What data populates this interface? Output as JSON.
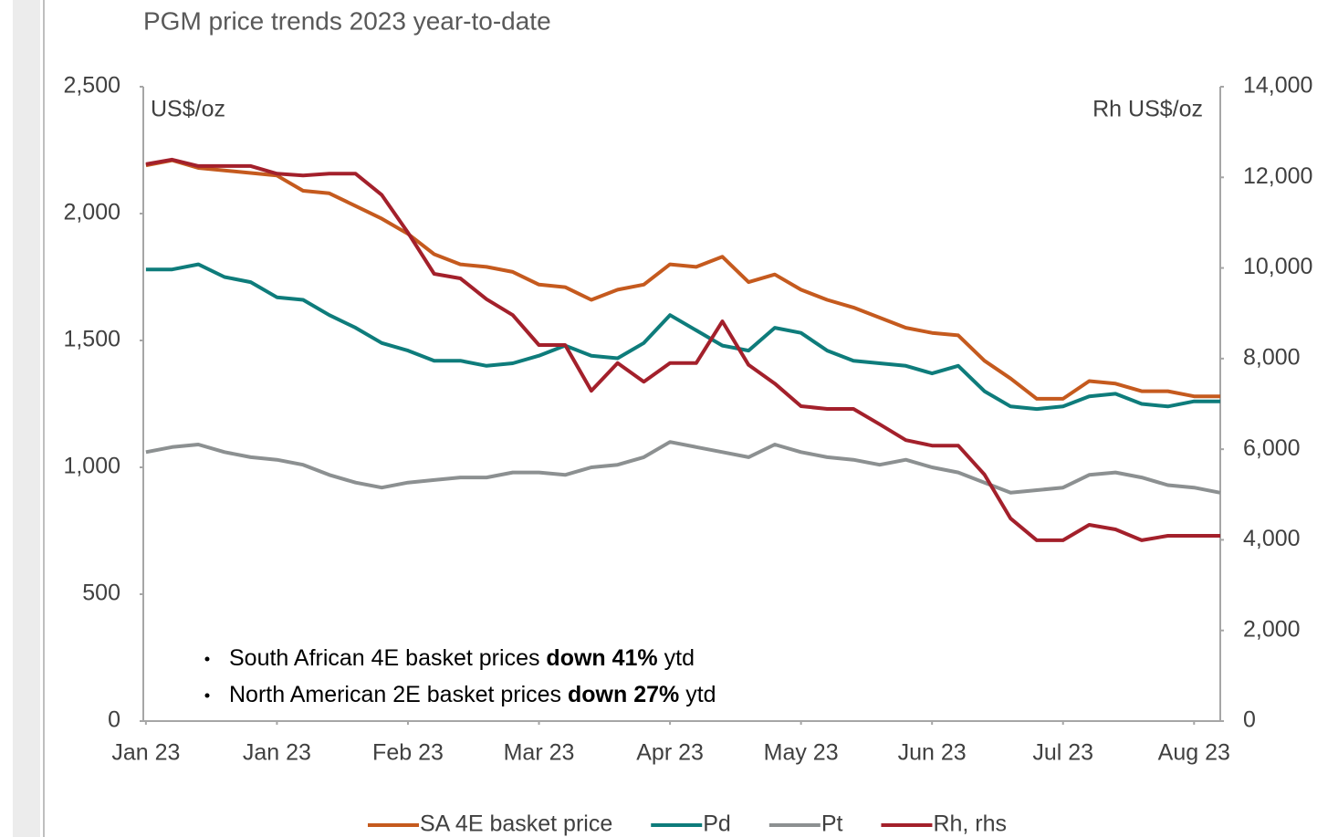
{
  "chart_data": {
    "type": "line",
    "title": "PGM price trends 2023 year-to-date",
    "y_label": "US$/oz",
    "y2_label": "Rh US$/oz",
    "x": [
      0,
      0.2,
      0.4,
      0.6,
      0.8,
      1.0,
      1.2,
      1.4,
      1.6,
      1.8,
      2.0,
      2.2,
      2.4,
      2.6,
      2.8,
      3.0,
      3.2,
      3.4,
      3.6,
      3.8,
      4.0,
      4.2,
      4.4,
      4.6,
      4.8,
      5.0,
      5.2,
      5.4,
      5.6,
      5.8,
      6.0,
      6.2,
      6.4,
      6.6,
      6.8,
      7.0,
      7.2,
      7.4,
      7.6,
      7.8,
      8.0,
      8.2
    ],
    "xlim": [
      -0.02,
      8.2
    ],
    "xticks": [
      {
        "value": 0,
        "label": "Jan 23"
      },
      {
        "value": 1,
        "label": "Jan 23"
      },
      {
        "value": 2,
        "label": "Feb 23"
      },
      {
        "value": 3,
        "label": "Mar 23"
      },
      {
        "value": 4,
        "label": "Apr 23"
      },
      {
        "value": 5,
        "label": "May 23"
      },
      {
        "value": 6,
        "label": "Jun 23"
      },
      {
        "value": 7,
        "label": "Jul 23"
      },
      {
        "value": 8,
        "label": "Aug 23"
      }
    ],
    "ylim": [
      0,
      2500
    ],
    "yticks": [
      0,
      500,
      {
        "value": 1000,
        "label": "1,000"
      },
      {
        "value": 1500,
        "label": "1,500"
      },
      {
        "value": 2000,
        "label": "2,000"
      },
      {
        "value": 2500,
        "label": "2,500"
      }
    ],
    "y2lim": [
      0,
      14000
    ],
    "y2ticks": [
      0,
      {
        "value": 2000,
        "label": "2,000"
      },
      {
        "value": 4000,
        "label": "4,000"
      },
      {
        "value": 6000,
        "label": "6,000"
      },
      {
        "value": 8000,
        "label": "8,000"
      },
      {
        "value": 10000,
        "label": "10,000"
      },
      {
        "value": 12000,
        "label": "12,000"
      },
      {
        "value": 14000,
        "label": "14,000"
      }
    ],
    "legend": "bottom",
    "series": [
      {
        "name": "SA 4E basket price",
        "color": "#c55a1e",
        "values": [
          2190,
          2210,
          2180,
          2170,
          2160,
          2150,
          2090,
          2080,
          2030,
          1980,
          1920,
          1840,
          1800,
          1790,
          1770,
          1720,
          1710,
          1660,
          1700,
          1720,
          1800,
          1790,
          1830,
          1730,
          1760,
          1700,
          1660,
          1630,
          1590,
          1550,
          1530,
          1520,
          1420,
          1350,
          1270,
          1270,
          1340,
          1330,
          1300,
          1300,
          1280,
          1280
        ]
      },
      {
        "name": "Pd",
        "color": "#0e7c7b",
        "values": [
          1780,
          1780,
          1800,
          1750,
          1730,
          1670,
          1660,
          1600,
          1550,
          1490,
          1460,
          1420,
          1420,
          1400,
          1410,
          1440,
          1480,
          1440,
          1430,
          1490,
          1600,
          1540,
          1480,
          1460,
          1550,
          1530,
          1460,
          1420,
          1410,
          1400,
          1370,
          1400,
          1300,
          1240,
          1230,
          1240,
          1280,
          1290,
          1250,
          1240,
          1260,
          1260
        ]
      },
      {
        "name": "Pt",
        "color": "#8c9091",
        "values": [
          1060,
          1080,
          1090,
          1060,
          1040,
          1030,
          1010,
          970,
          940,
          920,
          940,
          950,
          960,
          960,
          980,
          980,
          970,
          1000,
          1010,
          1040,
          1100,
          1080,
          1060,
          1040,
          1090,
          1060,
          1040,
          1030,
          1010,
          1030,
          1000,
          980,
          940,
          900,
          910,
          920,
          970,
          980,
          960,
          930,
          920,
          900
        ]
      },
      {
        "name": "Rh, rhs",
        "color": "#a3202b",
        "axis": "y2",
        "values": [
          12290,
          12390,
          12250,
          12250,
          12250,
          12080,
          12040,
          12080,
          12080,
          11610,
          10780,
          9870,
          9770,
          9310,
          8960,
          8300,
          8300,
          7290,
          7900,
          7490,
          7900,
          7900,
          8820,
          7860,
          7450,
          6950,
          6890,
          6890,
          6550,
          6200,
          6080,
          6080,
          5440,
          4470,
          3990,
          3990,
          4330,
          4230,
          3990,
          4090,
          4090,
          4090
        ]
      }
    ],
    "annotations": [
      {
        "text": "South African 4E basket prices ",
        "bold": "down 41%",
        "after": " ytd"
      },
      {
        "text": "North American 2E basket prices ",
        "bold": "down 27%",
        "after": " ytd"
      }
    ]
  }
}
